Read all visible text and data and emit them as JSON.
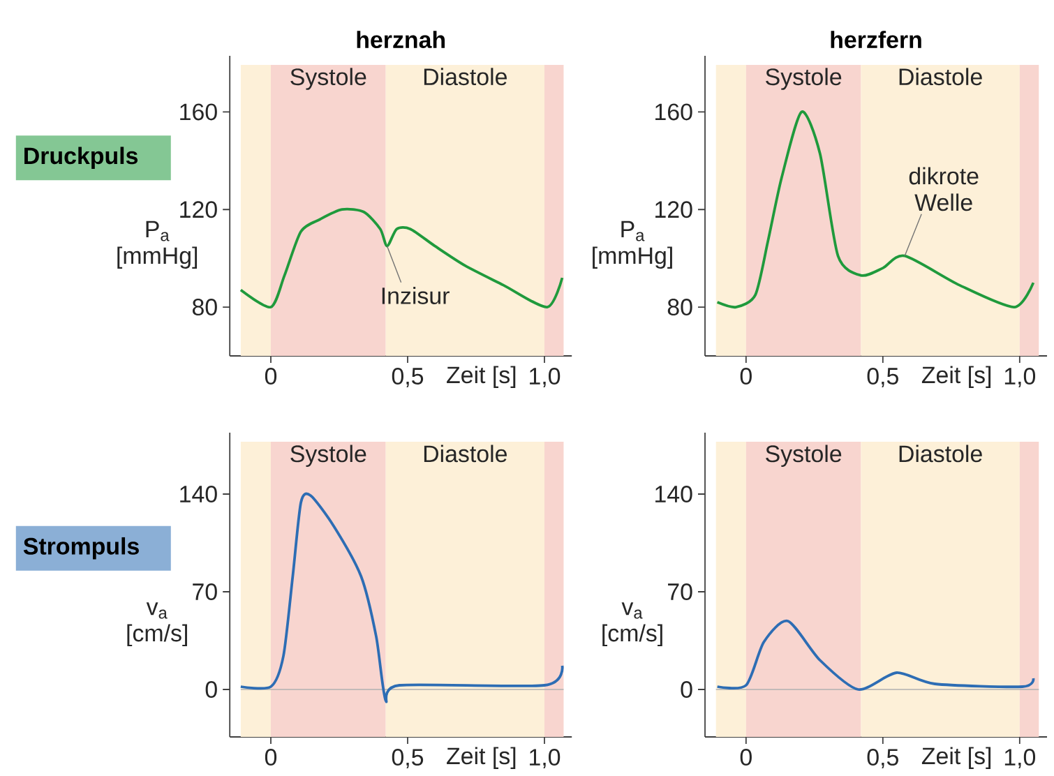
{
  "chart_data": [
    {
      "type": "line",
      "title": "herznah",
      "xlabel": "Zeit [s]",
      "ylabel": "P$_{a}$ [mmHg]",
      "color": "#1f9a3c",
      "x": [
        -0.11,
        0,
        0.05,
        0.11,
        0.18,
        0.26,
        0.34,
        0.4,
        0.425,
        0.46,
        0.51,
        0.6,
        0.71,
        0.85,
        1.01,
        1.065
      ],
      "values": [
        87,
        80,
        93,
        111,
        116,
        120,
        119,
        112,
        105,
        112,
        112,
        105,
        97,
        89,
        80,
        92
      ],
      "xlim": [
        -0.15,
        1.1
      ],
      "ylim": [
        60,
        183
      ],
      "xticks": [
        {
          "value": 0,
          "label": "0"
        },
        {
          "value": 0.5,
          "label": "0,5"
        },
        {
          "value": 1.0,
          "label": "1,0"
        }
      ],
      "yticks": [
        80,
        120,
        160
      ],
      "bands": [
        {
          "axis": "x",
          "from": -0.11,
          "to": 0,
          "color": "#fdf0d8"
        },
        {
          "axis": "x",
          "from": 0,
          "to": 0.42,
          "label": "Systole",
          "color": "#f8d5cf"
        },
        {
          "axis": "x",
          "from": 0.42,
          "to": 1.0,
          "label": "Diastole",
          "color": "#fdf0d8"
        },
        {
          "axis": "x",
          "from": 1.0,
          "to": 1.07,
          "color": "#f8d5cf"
        }
      ],
      "annotations": [
        "Druckpuls",
        {
          "text": "Inzisur",
          "x": 0.425,
          "y": 105
        }
      ]
    },
    {
      "type": "line",
      "title": "herzfern",
      "xlabel": "Zeit [s]",
      "ylabel": "P$_{a}$ [mmHg]",
      "color": "#1f9a3c",
      "x": [
        -0.105,
        -0.037,
        0.034,
        0.08,
        0.13,
        0.203,
        0.27,
        0.336,
        0.42,
        0.5,
        0.58,
        0.78,
        0.98,
        1.05
      ],
      "values": [
        82,
        80,
        85,
        107,
        133,
        160,
        143,
        101,
        93,
        96,
        101,
        89,
        80,
        90
      ],
      "xlim": [
        -0.15,
        1.1
      ],
      "ylim": [
        60,
        183
      ],
      "xticks": [
        {
          "value": 0,
          "label": "0"
        },
        {
          "value": 0.5,
          "label": "0,5"
        },
        {
          "value": 1.0,
          "label": "1,0"
        }
      ],
      "yticks": [
        80,
        120,
        160
      ],
      "bands": [
        {
          "axis": "x",
          "from": -0.11,
          "to": 0,
          "color": "#fdf0d8"
        },
        {
          "axis": "x",
          "from": 0,
          "to": 0.42,
          "label": "Systole",
          "color": "#f8d5cf"
        },
        {
          "axis": "x",
          "from": 0.42,
          "to": 1.0,
          "label": "Diastole",
          "color": "#fdf0d8"
        },
        {
          "axis": "x",
          "from": 1.0,
          "to": 1.07,
          "color": "#f8d5cf"
        }
      ],
      "annotations": [
        {
          "text": "dikrote Welle",
          "x": 0.58,
          "y": 101
        }
      ]
    },
    {
      "type": "line",
      "xlabel": "Zeit [s]",
      "ylabel": "v$_{a}$ [cm/s]",
      "color": "#2d6db4",
      "x": [
        -0.11,
        0,
        0.046,
        0.08,
        0.11,
        0.145,
        0.23,
        0.33,
        0.385,
        0.42,
        0.47,
        1.0,
        1.065
      ],
      "values": [
        2,
        2,
        24,
        81,
        134,
        139,
        117,
        81,
        38,
        -8,
        3,
        3,
        17
      ],
      "xlim": [
        -0.15,
        1.1
      ],
      "ylim": [
        -34,
        184
      ],
      "xticks": [
        {
          "value": 0,
          "label": "0"
        },
        {
          "value": 0.5,
          "label": "0,5"
        },
        {
          "value": 1.0,
          "label": "1,0"
        }
      ],
      "yticks": [
        0,
        70,
        140
      ],
      "bands": [
        {
          "axis": "x",
          "from": -0.11,
          "to": 0,
          "color": "#fdf0d8"
        },
        {
          "axis": "x",
          "from": 0,
          "to": 0.42,
          "label": "Systole",
          "color": "#f8d5cf"
        },
        {
          "axis": "x",
          "from": 0.42,
          "to": 1.0,
          "label": "Diastole",
          "color": "#fdf0d8"
        },
        {
          "axis": "x",
          "from": 1.0,
          "to": 1.07,
          "color": "#f8d5cf"
        }
      ],
      "ref_lines": [
        {
          "axis": "y",
          "value": 0,
          "color": "#b0b0b0"
        }
      ],
      "annotations": [
        "Strompuls"
      ]
    },
    {
      "type": "line",
      "xlabel": "Zeit [s]",
      "ylabel": "v$_{a}$ [cm/s]",
      "color": "#2d6db4",
      "x": [
        -0.105,
        0,
        0.065,
        0.153,
        0.27,
        0.41,
        0.55,
        0.69,
        1.01,
        1.05
      ],
      "values": [
        2,
        3,
        34,
        49,
        21,
        0,
        12,
        4,
        2,
        8
      ],
      "xlim": [
        -0.15,
        1.1
      ],
      "ylim": [
        -34,
        184
      ],
      "xticks": [
        {
          "value": 0,
          "label": "0"
        },
        {
          "value": 0.5,
          "label": "0,5"
        },
        {
          "value": 1.0,
          "label": "1,0"
        }
      ],
      "yticks": [
        0,
        70,
        140
      ],
      "bands": [
        {
          "axis": "x",
          "from": -0.11,
          "to": 0,
          "color": "#fdf0d8"
        },
        {
          "axis": "x",
          "from": 0,
          "to": 0.42,
          "label": "Systole",
          "color": "#f8d5cf"
        },
        {
          "axis": "x",
          "from": 0.42,
          "to": 1.0,
          "label": "Diastole",
          "color": "#fdf0d8"
        },
        {
          "axis": "x",
          "from": 1.0,
          "to": 1.07,
          "color": "#f8d5cf"
        }
      ],
      "ref_lines": [
        {
          "axis": "y",
          "value": 0,
          "color": "#b0b0b0"
        }
      ]
    }
  ]
}
